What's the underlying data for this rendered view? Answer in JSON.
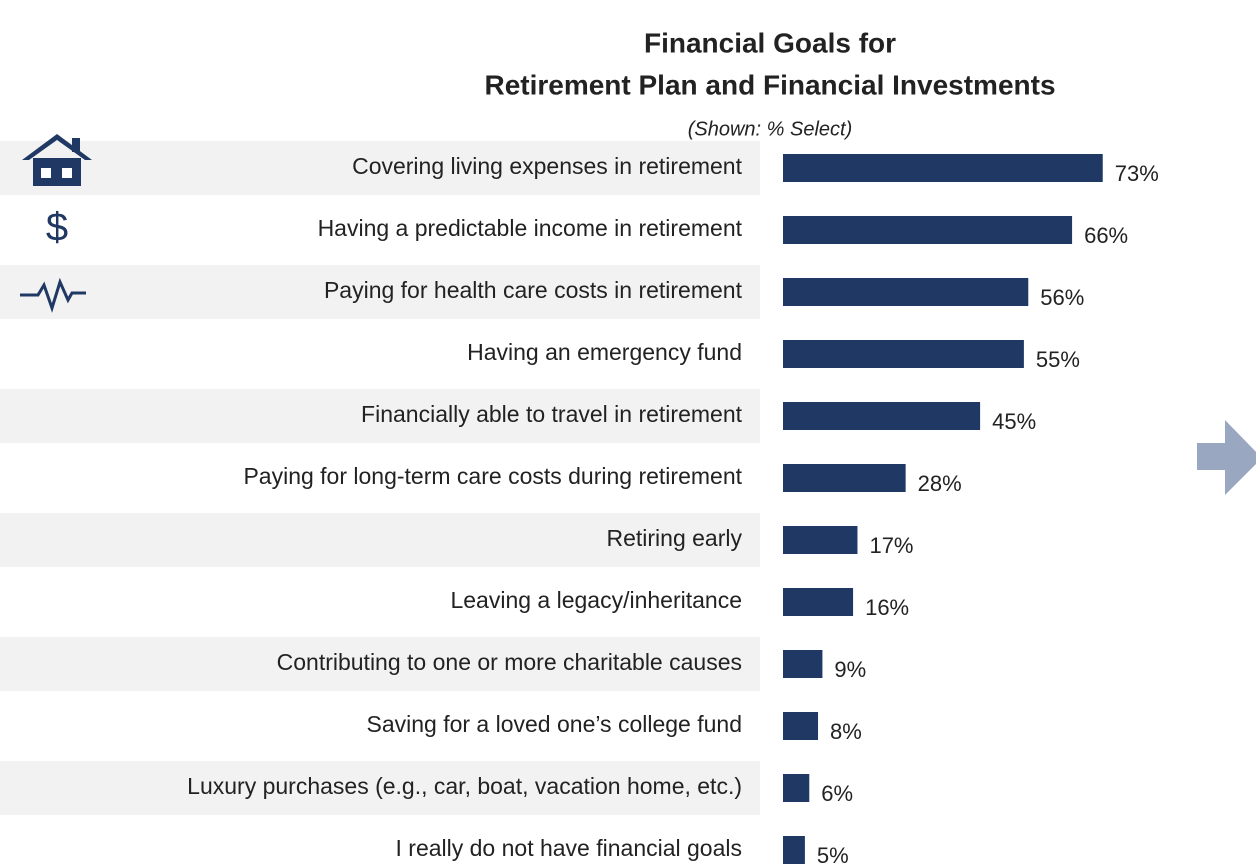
{
  "chart_data": {
    "type": "bar",
    "orientation": "horizontal",
    "title": [
      "Financial Goals for",
      "Retirement Plan and Financial Investments"
    ],
    "subtitle": "(Shown: % Select)",
    "color": "#203864",
    "categories": [
      "Covering living expenses in retirement",
      "Having a predictable income in retirement",
      "Paying for health care costs in retirement",
      "Having an emergency fund",
      "Financially able to travel in retirement",
      "Paying for long-term care costs during retirement",
      "Retiring early",
      "Leaving a legacy/inheritance",
      "Contributing to one or more charitable causes",
      "Saving for a loved one’s college fund",
      "Luxury purchases (e.g., car, boat, vacation home, etc.)",
      "I really do not have financial goals"
    ],
    "values": [
      73,
      66,
      56,
      55,
      45,
      28,
      17,
      16,
      9,
      8,
      6,
      5
    ],
    "value_labels": [
      "73%",
      "66%",
      "56%",
      "55%",
      "45%",
      "28%",
      "17%",
      "16%",
      "9%",
      "8%",
      "6%",
      "5%"
    ]
  }
}
